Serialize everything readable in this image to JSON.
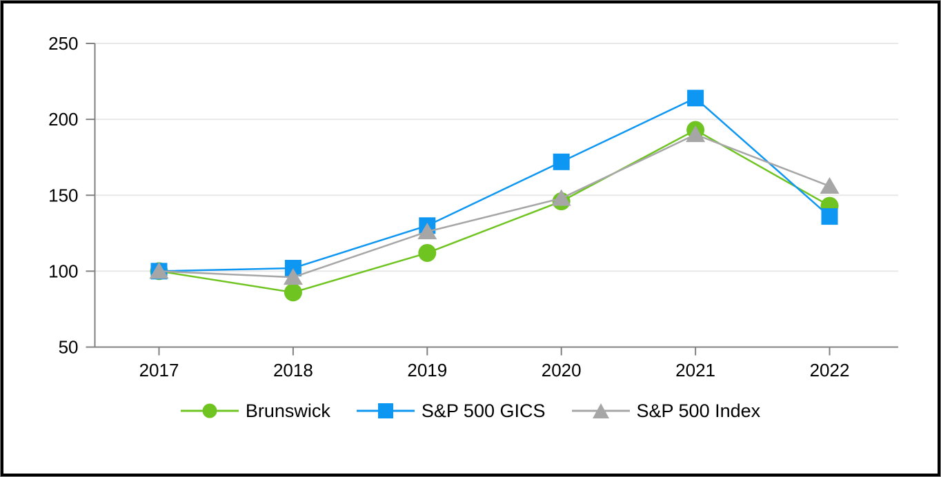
{
  "page": {
    "background_color": "#ffffff",
    "frame_border_color": "#000000",
    "frame_outline_color": "#8c8c8c"
  },
  "chart_data": {
    "type": "line",
    "title": "",
    "xlabel": "",
    "ylabel": "",
    "categories": [
      "2017",
      "2018",
      "2019",
      "2020",
      "2021",
      "2022"
    ],
    "series": [
      {
        "name": "Brunswick",
        "marker": "circle",
        "color": "#6FC422",
        "values": [
          100,
          86,
          112,
          146,
          193,
          143
        ]
      },
      {
        "name": "S&P 500 GICS",
        "marker": "square",
        "color": "#0D96F2",
        "values": [
          100,
          102,
          130,
          172,
          214,
          136
        ]
      },
      {
        "name": "S&P 500 Index",
        "marker": "triangle",
        "color": "#A6A6A6",
        "values": [
          100,
          96,
          126,
          148,
          190,
          156
        ]
      }
    ],
    "ylim": [
      50,
      250
    ],
    "yticks": [
      50,
      100,
      150,
      200,
      250
    ],
    "grid": true,
    "legend_position": "bottom",
    "axis_color": "#808080",
    "gridline_color": "#E8E8E8",
    "text_color": "#000000"
  }
}
